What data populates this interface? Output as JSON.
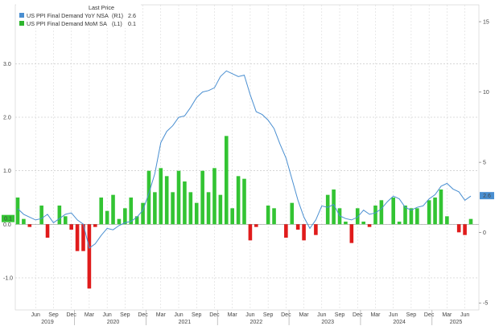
{
  "chart_data": {
    "type": "bar+line",
    "legend": {
      "header": "Last Price",
      "items": [
        {
          "label": "US PPI Final Demand YoY NSA",
          "axis": "(R1)",
          "last": "2.6",
          "color": "#4a8fd1"
        },
        {
          "label": "US PPI Final Demand MoM SA",
          "axis": "(L1)",
          "last": "0.1",
          "color": "#2db52d"
        }
      ]
    },
    "left_axis": {
      "ticks": [
        "3.0",
        "2.0",
        "1.0",
        "0.0",
        "-1.0"
      ],
      "values": [
        3,
        2,
        1,
        0,
        -1
      ],
      "ylim": [
        -1.6,
        4.1
      ]
    },
    "right_axis": {
      "ticks": [
        "15",
        "10",
        "5",
        "0",
        "-5"
      ],
      "values": [
        15,
        10,
        5,
        0,
        -5
      ],
      "ylim": [
        -5.5,
        16.2
      ]
    },
    "end_labels": {
      "left": "0.1",
      "right": "2.6"
    },
    "x_month_ticks": [
      "Jun",
      "Sep",
      "Dec",
      "Mar",
      "Jun",
      "Sep",
      "Dec",
      "Mar",
      "Jun",
      "Sep",
      "Dec",
      "Mar",
      "Jun",
      "Sep",
      "Dec",
      "Mar",
      "Jun",
      "Sep",
      "Dec",
      "Mar",
      "Jun",
      "Sep",
      "Dec",
      "Mar",
      "Jun"
    ],
    "x_year_ticks": [
      "2019",
      "2020",
      "2021",
      "2022",
      "2023",
      "2024",
      "2025"
    ],
    "series": [
      {
        "name": "US PPI Final Demand MoM SA",
        "axis": "left",
        "type": "bar",
        "color_pos": "#33c433",
        "color_neg": "#e01b1b",
        "values": [
          0.5,
          0.1,
          -0.05,
          0.0,
          0.35,
          -0.25,
          0.0,
          0.35,
          0.15,
          -0.1,
          -0.5,
          -0.5,
          -1.2,
          -0.05,
          0.5,
          0.25,
          0.55,
          0.1,
          0.3,
          0.5,
          0.15,
          0.4,
          1.0,
          0.6,
          1.05,
          0.9,
          0.6,
          1.0,
          0.8,
          0.6,
          0.4,
          1.0,
          0.6,
          1.05,
          0.55,
          1.65,
          0.3,
          0.9,
          0.85,
          -0.3,
          -0.05,
          0.0,
          0.35,
          0.3,
          0.0,
          -0.25,
          0.4,
          -0.1,
          -0.3,
          0.0,
          -0.2,
          0.0,
          0.55,
          0.65,
          0.3,
          0.05,
          -0.35,
          0.3,
          0.05,
          -0.05,
          0.35,
          0.45,
          0.0,
          0.5,
          0.05,
          0.35,
          0.3,
          0.3,
          0.0,
          0.45,
          0.5,
          0.65,
          0.15,
          0.0,
          -0.15,
          -0.2,
          0.1
        ]
      },
      {
        "name": "US PPI Final Demand YoY NSA",
        "axis": "right",
        "type": "line",
        "color": "#4a8fd1",
        "values": [
          1.7,
          1.3,
          1.1,
          0.9,
          1.0,
          1.3,
          0.7,
          1.0,
          1.3,
          1.4,
          0.9,
          0.6,
          -1.1,
          -0.8,
          -0.2,
          0.3,
          0.2,
          0.5,
          0.7,
          0.8,
          1.1,
          1.6,
          2.8,
          4.2,
          6.4,
          7.2,
          7.6,
          8.2,
          8.3,
          8.9,
          9.6,
          10.0,
          10.1,
          10.3,
          11.1,
          11.5,
          11.3,
          11.1,
          11.2,
          9.8,
          8.6,
          8.4,
          8.0,
          7.4,
          6.3,
          5.3,
          3.8,
          2.3,
          1.1,
          0.3,
          0.9,
          1.9,
          1.8,
          2.0,
          1.2,
          1.0,
          0.9,
          1.1,
          1.6,
          1.3,
          1.4,
          1.7,
          2.2,
          2.6,
          2.4,
          1.8,
          1.6,
          1.8,
          1.9,
          2.4,
          2.7,
          3.3,
          3.5,
          3.1,
          2.9,
          2.3,
          2.6
        ]
      }
    ],
    "grid": true
  }
}
